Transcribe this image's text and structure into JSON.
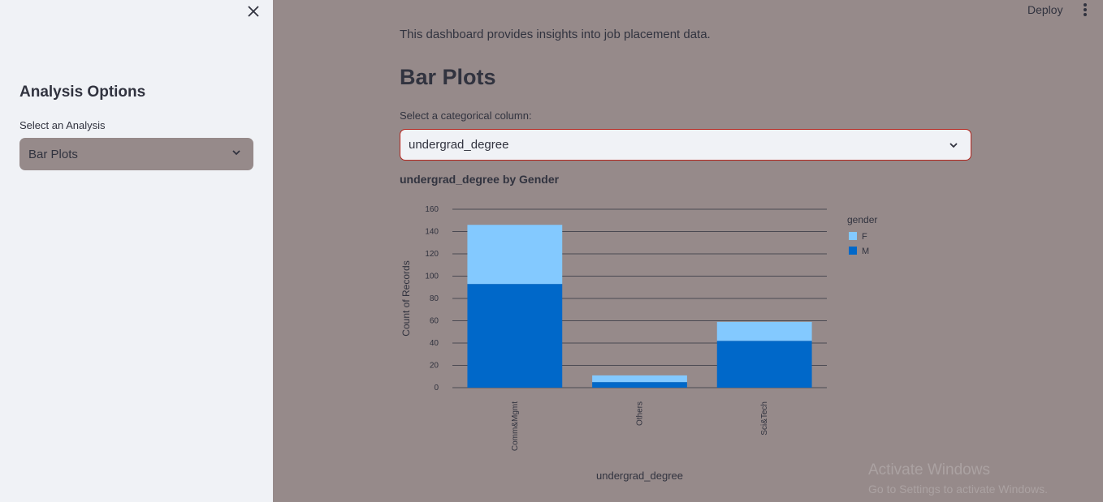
{
  "sidebar": {
    "title": "Analysis Options",
    "select_label": "Select an Analysis",
    "select_value": "Bar Plots"
  },
  "topbar": {
    "deploy_label": "Deploy"
  },
  "main": {
    "intro": "This dashboard provides insights into job placement data.",
    "title": "Bar Plots",
    "select_label": "Select a categorical column:",
    "select_value": "undergrad_degree",
    "chart_title": "undergrad_degree by Gender"
  },
  "colors": {
    "F": "#83c9ff",
    "M": "#0068c9"
  },
  "chart_data": {
    "type": "bar",
    "stacked": true,
    "title": "undergrad_degree by Gender",
    "xlabel": "undergrad_degree",
    "ylabel": "Count of Records",
    "categories": [
      "Comm&Mgmt",
      "Others",
      "Sci&Tech"
    ],
    "series": [
      {
        "name": "M",
        "values": [
          93,
          5,
          42
        ]
      },
      {
        "name": "F",
        "values": [
          53,
          6,
          17
        ]
      }
    ],
    "ylim": [
      0,
      160
    ],
    "yticks": [
      0,
      20,
      40,
      60,
      80,
      100,
      120,
      140,
      160
    ],
    "legend_title": "gender",
    "legend_position": "right",
    "grid": true
  },
  "watermark": {
    "line1": "Activate Windows",
    "line2": "Go to Settings to activate Windows."
  }
}
